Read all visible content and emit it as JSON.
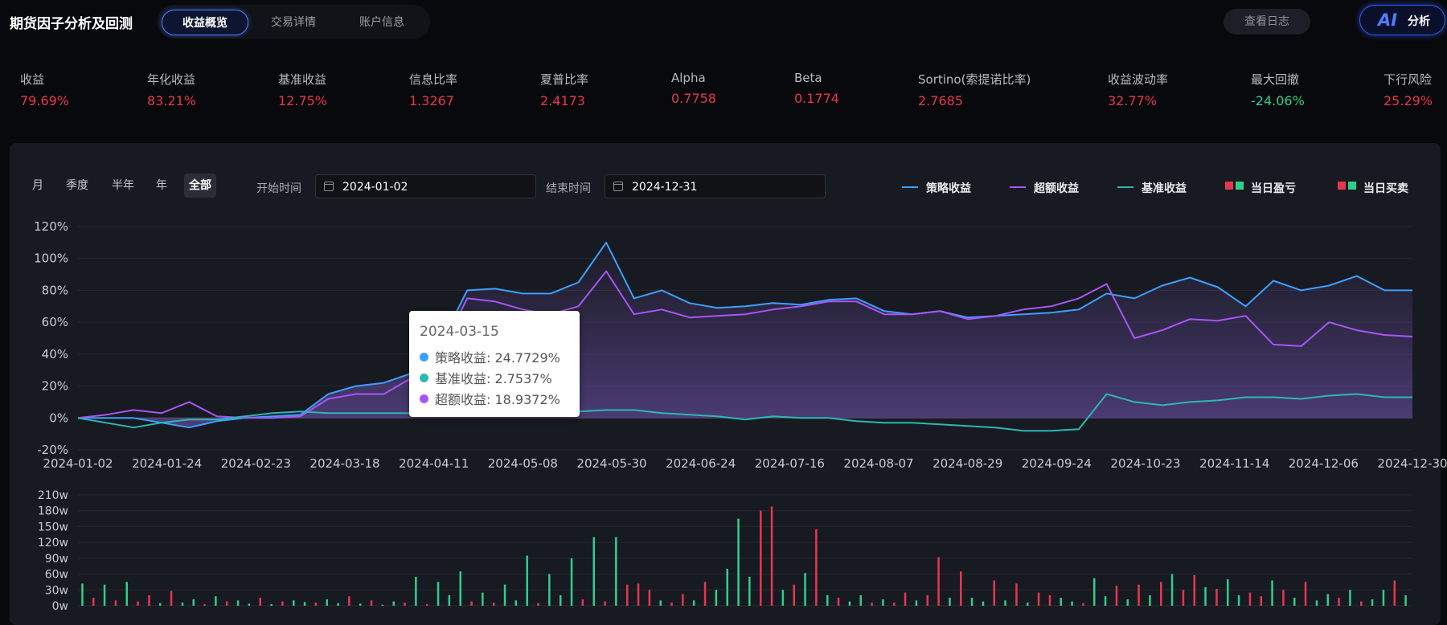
{
  "app": {
    "title": "期货因子分析及回测"
  },
  "tabs": [
    {
      "label": "收益概览",
      "active": true
    },
    {
      "label": "交易详情",
      "active": false
    },
    {
      "label": "账户信息",
      "active": false
    }
  ],
  "header_buttons": {
    "log": "查看日志",
    "ai_logo": "AI",
    "ai_label": "分析"
  },
  "metrics": [
    {
      "label": "收益",
      "value": "79.69%",
      "tone": "red"
    },
    {
      "label": "年化收益",
      "value": "83.21%",
      "tone": "red"
    },
    {
      "label": "基准收益",
      "value": "12.75%",
      "tone": "red"
    },
    {
      "label": "信息比率",
      "value": "1.3267",
      "tone": "red"
    },
    {
      "label": "夏普比率",
      "value": "2.4173",
      "tone": "red"
    },
    {
      "label": "Alpha",
      "value": "0.7758",
      "tone": "red"
    },
    {
      "label": "Beta",
      "value": "0.1774",
      "tone": "red"
    },
    {
      "label": "Sortino(索提诺比率)",
      "value": "2.7685",
      "tone": "red"
    },
    {
      "label": "收益波动率",
      "value": "32.77%",
      "tone": "red"
    },
    {
      "label": "最大回撤",
      "value": "-24.06%",
      "tone": "green"
    },
    {
      "label": "下行风险",
      "value": "25.29%",
      "tone": "red"
    }
  ],
  "periods": [
    {
      "label": "月"
    },
    {
      "label": "季度"
    },
    {
      "label": "半年"
    },
    {
      "label": "年"
    },
    {
      "label": "全部",
      "active": true
    }
  ],
  "date_range": {
    "start_label": "开始时间",
    "start_value": "2024-01-02",
    "end_label": "结束时间",
    "end_value": "2024-12-31"
  },
  "legend": [
    {
      "label": "策略收益",
      "kind": "line",
      "color": "#3aa0ff"
    },
    {
      "label": "超额收益",
      "kind": "line",
      "color": "#a855f7"
    },
    {
      "label": "基准收益",
      "kind": "line",
      "color": "#2bb8b0"
    },
    {
      "label": "当日盈亏",
      "kind": "squares",
      "colors": [
        "#e8364f",
        "#2fcf8a"
      ]
    },
    {
      "label": "当日买卖",
      "kind": "squares",
      "colors": [
        "#e8364f",
        "#2fcf8a"
      ]
    }
  ],
  "tooltip": {
    "date": "2024-03-15",
    "rows": [
      {
        "label": "策略收益: 24.7729%",
        "color": "#3aa0ff"
      },
      {
        "label": "基准收益: 2.7537%",
        "color": "#2bb8b0"
      },
      {
        "label": "超额收益: 18.9372%",
        "color": "#a855f7"
      }
    ]
  },
  "colors": {
    "strategy": "#3aa0ff",
    "excess": "#a855f7",
    "benchmark": "#2bb8b0",
    "up": "#e8364f",
    "down": "#2fcf8a"
  },
  "chart_data": [
    {
      "type": "line",
      "x_ticks": [
        "2024-01-02",
        "2024-01-24",
        "2024-02-23",
        "2024-03-18",
        "2024-04-11",
        "2024-05-08",
        "2024-05-30",
        "2024-06-24",
        "2024-07-16",
        "2024-08-07",
        "2024-08-29",
        "2024-09-24",
        "2024-10-23",
        "2024-11-14",
        "2024-12-06",
        "2024-12-30"
      ],
      "y_ticks": [
        "120%",
        "100%",
        "80%",
        "60%",
        "40%",
        "20%",
        "0%",
        "-20%"
      ],
      "ylim": [
        -20,
        120
      ],
      "series": [
        {
          "name": "策略收益",
          "values": [
            0,
            0,
            0,
            -3,
            -6,
            -2,
            0,
            1,
            2,
            15,
            20,
            22,
            28,
            45,
            80,
            81,
            78,
            78,
            85,
            110,
            75,
            80,
            72,
            69,
            70,
            72,
            71,
            74,
            75,
            67,
            65,
            67,
            63,
            64,
            65,
            66,
            68,
            78,
            75,
            83,
            88,
            82,
            70,
            86,
            80,
            83,
            89,
            80,
            80
          ]
        },
        {
          "name": "超额收益",
          "values": [
            0,
            2,
            5,
            3,
            10,
            1,
            0,
            0,
            1,
            12,
            15,
            15,
            25,
            40,
            75,
            73,
            68,
            65,
            70,
            92,
            65,
            68,
            63,
            64,
            65,
            68,
            70,
            73,
            73,
            65,
            65,
            67,
            62,
            64,
            68,
            70,
            75,
            84,
            50,
            55,
            62,
            61,
            64,
            46,
            45,
            60,
            55,
            52,
            51
          ]
        },
        {
          "name": "基准收益",
          "values": [
            0,
            -3,
            -6,
            -3,
            -1,
            -1,
            1,
            3,
            4,
            3,
            3,
            3,
            3,
            3,
            5,
            6,
            5,
            4,
            4,
            5,
            5,
            3,
            2,
            1,
            -1,
            1,
            0,
            0,
            -2,
            -3,
            -3,
            -4,
            -5,
            -6,
            -8,
            -8,
            -7,
            15,
            10,
            8,
            10,
            11,
            13,
            13,
            12,
            14,
            15,
            13,
            13
          ]
        }
      ]
    },
    {
      "type": "bar",
      "y_ticks": [
        "210w",
        "180w",
        "150w",
        "120w",
        "90w",
        "60w",
        "30w",
        "0w"
      ],
      "ylim": [
        0,
        210
      ],
      "series": [
        {
          "name": "当日买卖",
          "values": [
            42,
            15,
            40,
            10,
            45,
            8,
            20,
            5,
            28,
            6,
            12,
            3,
            18,
            8,
            10,
            4,
            15,
            3,
            8,
            10,
            7,
            6,
            12,
            5,
            18,
            4,
            10,
            2,
            8,
            6,
            55,
            3,
            45,
            20,
            65,
            8,
            25,
            6,
            40,
            10,
            95,
            5,
            60,
            20,
            90,
            12,
            130,
            8,
            130,
            40,
            42,
            30,
            10,
            6,
            22,
            10,
            45,
            30,
            70,
            165,
            55,
            180,
            188,
            30,
            40,
            62,
            145,
            20,
            15,
            8,
            20,
            6,
            12,
            6,
            25,
            10,
            20,
            92,
            15,
            65,
            15,
            8,
            48,
            10,
            42,
            6,
            25,
            20,
            15,
            8,
            5,
            52,
            18,
            38,
            12,
            40,
            20,
            45,
            60,
            30,
            58,
            35,
            32,
            50,
            20,
            25,
            18,
            48,
            30,
            15,
            45,
            10,
            22,
            15,
            30,
            8,
            12,
            30,
            48,
            20
          ]
        }
      ],
      "up_flags": [
        0,
        1,
        0,
        1,
        0,
        1,
        1,
        0,
        1,
        0,
        0,
        1,
        0,
        1,
        0,
        0,
        1,
        0,
        1,
        0,
        0,
        1,
        0,
        0,
        1,
        0,
        1,
        0,
        0,
        1,
        0,
        1,
        0,
        0,
        0,
        1,
        0,
        1,
        0,
        0,
        0,
        1,
        0,
        0,
        0,
        1,
        0,
        1,
        0,
        1,
        1,
        1,
        0,
        1,
        1,
        0,
        1,
        0,
        0,
        0,
        0,
        1,
        1,
        0,
        1,
        0,
        1,
        0,
        1,
        0,
        0,
        1,
        0,
        1,
        1,
        0,
        1,
        1,
        0,
        1,
        0,
        0,
        1,
        0,
        1,
        0,
        1,
        1,
        0,
        0,
        1,
        0,
        0,
        1,
        0,
        1,
        0,
        1,
        0,
        1,
        1,
        0,
        1,
        0,
        0,
        1,
        1,
        0,
        1,
        0,
        1,
        0,
        0,
        1,
        0,
        1,
        0,
        0,
        1,
        0
      ]
    }
  ]
}
